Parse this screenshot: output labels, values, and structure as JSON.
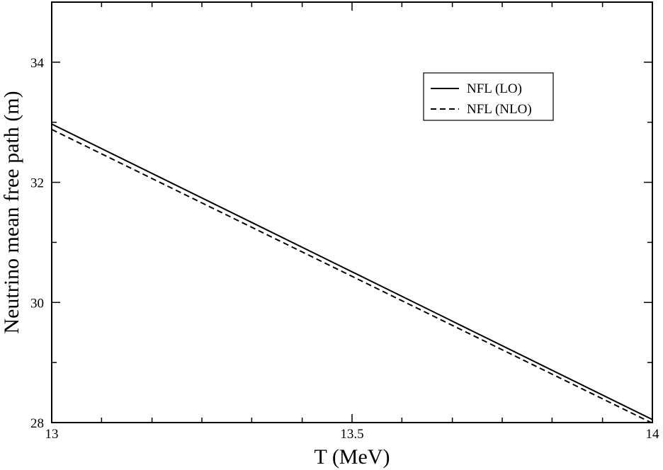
{
  "chart_data": {
    "type": "line",
    "title": "",
    "xlabel": "T (MeV)",
    "ylabel": "Neutrino mean free path (m)",
    "xlim": [
      13,
      14
    ],
    "ylim": [
      28,
      35
    ],
    "x_ticks": [
      13,
      13.5,
      14
    ],
    "x_tick_labels": [
      "13",
      "13.5",
      "14"
    ],
    "x_minor_ticks": [
      13.083,
      13.167,
      13.25,
      13.333,
      13.417,
      13.583,
      13.667,
      13.75,
      13.833,
      13.917
    ],
    "y_ticks": [
      28,
      30,
      32,
      34
    ],
    "y_tick_labels": [
      "28",
      "30",
      "32",
      "34"
    ],
    "y_minor_ticks": [
      29,
      31,
      33
    ],
    "grid": false,
    "legend": {
      "placement": "top-right"
    },
    "series": [
      {
        "name": "NFL (LO)",
        "style": "solid",
        "color": "#000000",
        "x": [
          13,
          14
        ],
        "y": [
          32.97,
          28.05
        ]
      },
      {
        "name": "NFL (NLO)",
        "style": "dashed",
        "color": "#000000",
        "x": [
          13,
          14
        ],
        "y": [
          32.88,
          27.99
        ]
      }
    ]
  }
}
